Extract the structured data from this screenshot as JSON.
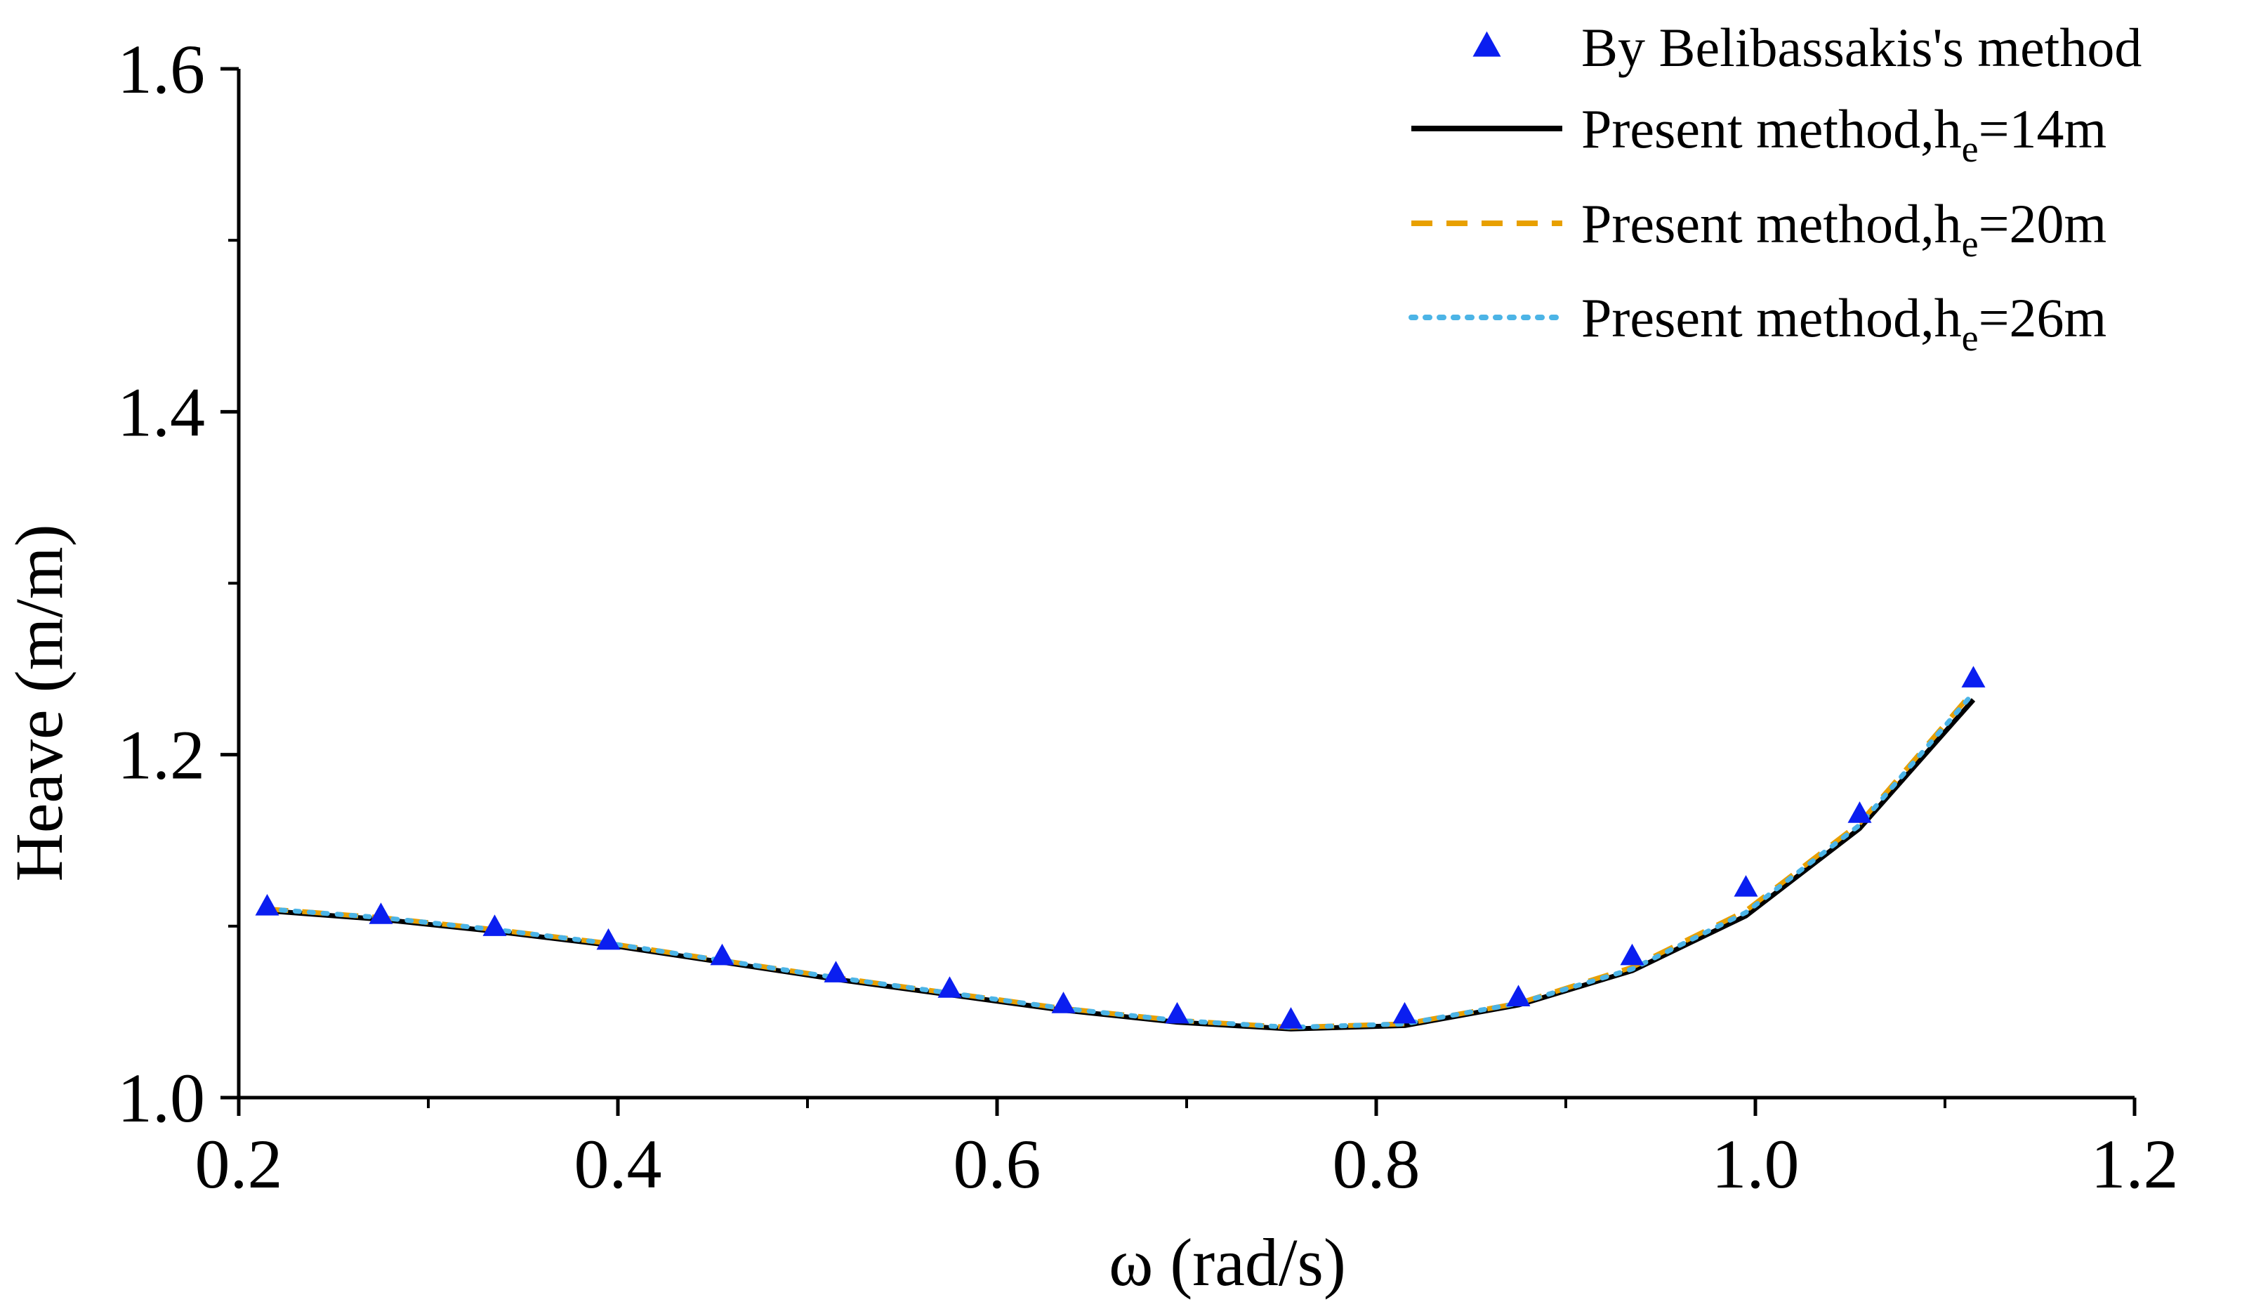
{
  "chart_data": {
    "type": "line",
    "title": "",
    "xlabel": "ω (rad/s)",
    "ylabel": "Heave (m/m)",
    "xlim": [
      0.2,
      1.2
    ],
    "ylim": [
      1.0,
      1.6
    ],
    "xticks": [
      "0.2",
      "0.4",
      "0.6",
      "0.8",
      "1.0",
      "1.2"
    ],
    "yticks": [
      "1.0",
      "1.2",
      "1.4",
      "1.6"
    ],
    "x_minor_step": 0.1,
    "y_minor_step": 0.1,
    "legend_position": "top-right",
    "series": [
      {
        "name": "By Belibassakis's method",
        "legend_label": "By Belibassakis's method",
        "kind": "markers",
        "marker": "triangle",
        "color": "#0a1ef0",
        "x": [
          0.215,
          0.275,
          0.335,
          0.395,
          0.455,
          0.515,
          0.575,
          0.635,
          0.695,
          0.755,
          0.815,
          0.875,
          0.935,
          0.995,
          1.055,
          1.115
        ],
        "y": [
          1.111,
          1.106,
          1.099,
          1.091,
          1.082,
          1.072,
          1.063,
          1.054,
          1.048,
          1.045,
          1.048,
          1.058,
          1.082,
          1.122,
          1.165,
          1.244
        ]
      },
      {
        "name": "Present method, he=14m",
        "legend_label": "Present method,h",
        "legend_sub": "e",
        "legend_tail": "=14m",
        "kind": "line",
        "dash": "solid",
        "color": "#000000",
        "x": [
          0.215,
          0.275,
          0.335,
          0.395,
          0.455,
          0.515,
          0.575,
          0.635,
          0.695,
          0.755,
          0.815,
          0.875,
          0.935,
          0.995,
          1.055,
          1.115
        ],
        "y": [
          1.109,
          1.104,
          1.097,
          1.089,
          1.079,
          1.069,
          1.06,
          1.051,
          1.044,
          1.04,
          1.042,
          1.054,
          1.074,
          1.106,
          1.157,
          1.232
        ]
      },
      {
        "name": "Present method, he=20m",
        "legend_label": "Present method,h",
        "legend_sub": "e",
        "legend_tail": "=20m",
        "kind": "line",
        "dash": "dashed",
        "color": "#e8a000",
        "x": [
          0.215,
          0.275,
          0.335,
          0.395,
          0.455,
          0.515,
          0.575,
          0.635,
          0.695,
          0.755,
          0.815,
          0.875,
          0.935,
          0.995,
          1.055,
          1.115
        ],
        "y": [
          1.11,
          1.105,
          1.098,
          1.09,
          1.08,
          1.07,
          1.061,
          1.052,
          1.045,
          1.041,
          1.043,
          1.055,
          1.076,
          1.109,
          1.16,
          1.237
        ]
      },
      {
        "name": "Present method, he=26m",
        "legend_label": "Present method,h",
        "legend_sub": "e",
        "legend_tail": "=26m",
        "kind": "line",
        "dash": "dotted",
        "color": "#4cb4e6",
        "x": [
          0.215,
          0.275,
          0.335,
          0.395,
          0.455,
          0.515,
          0.575,
          0.635,
          0.695,
          0.755,
          0.815,
          0.875,
          0.935,
          0.995,
          1.055,
          1.115
        ],
        "y": [
          1.11,
          1.105,
          1.098,
          1.09,
          1.08,
          1.07,
          1.061,
          1.052,
          1.045,
          1.041,
          1.043,
          1.055,
          1.075,
          1.108,
          1.159,
          1.236
        ]
      }
    ]
  }
}
